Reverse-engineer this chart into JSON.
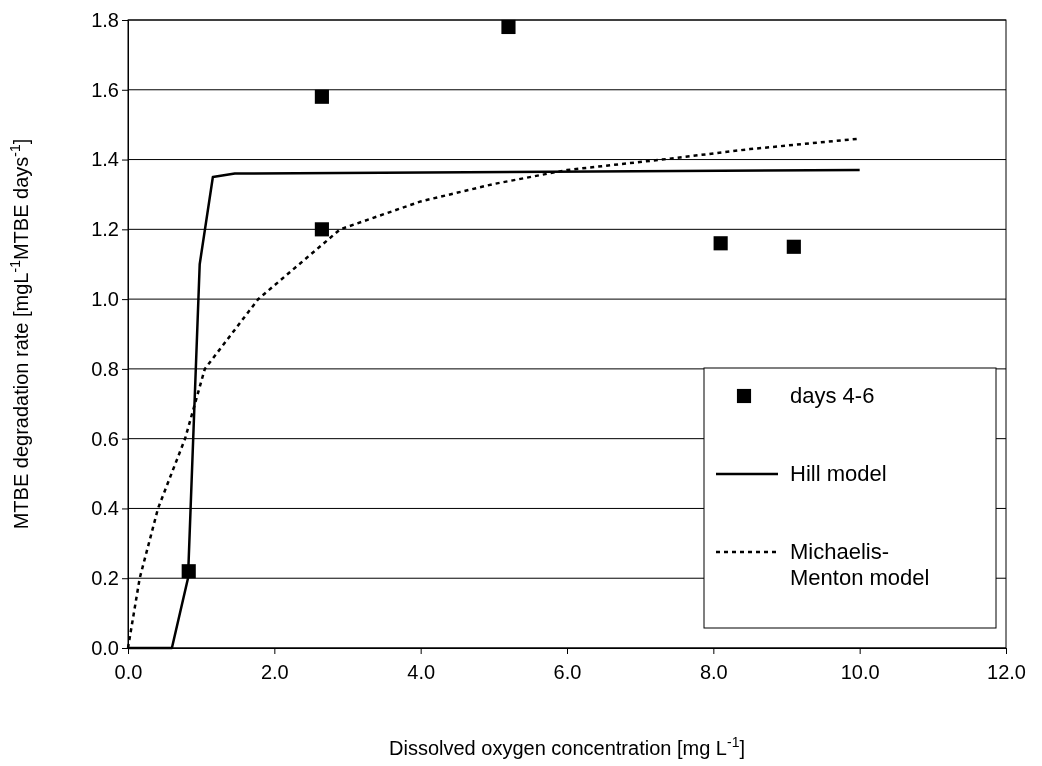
{
  "chart_data": {
    "type": "scatter",
    "xlabel": "Dissolved oxygen concentration [mg L$^{-1}$]",
    "ylabel": "MTBE degradation rate [mgL$^{-1}$MTBE days$^{-1}$]",
    "xlim": [
      0,
      12
    ],
    "ylim": [
      0,
      1.8
    ],
    "xticks": [
      {
        "value": 0,
        "label": "0.0"
      },
      {
        "value": 2,
        "label": "2.0"
      },
      {
        "value": 4,
        "label": "4.0"
      },
      {
        "value": 6,
        "label": "6.0"
      },
      {
        "value": 8,
        "label": "8.0"
      },
      {
        "value": 10,
        "label": "10.0"
      },
      {
        "value": 12,
        "label": "12.0"
      }
    ],
    "yticks": [
      {
        "value": 0,
        "label": "0.0"
      },
      {
        "value": 0.2,
        "label": "0.2"
      },
      {
        "value": 0.4,
        "label": "0.4"
      },
      {
        "value": 0.6,
        "label": "0.6"
      },
      {
        "value": 0.8,
        "label": "0.8"
      },
      {
        "value": 1,
        "label": "1.0"
      },
      {
        "value": 1.2,
        "label": "1.2"
      },
      {
        "value": 1.4,
        "label": "1.4"
      },
      {
        "value": 1.6,
        "label": "1.6"
      },
      {
        "value": 1.8,
        "label": "1.8"
      }
    ],
    "grid": "y",
    "legend": "bottom right",
    "series": [
      {
        "name": "days 4-6",
        "marker": "square",
        "color": "#000000",
        "x": [
          0.83,
          2.65,
          2.65,
          5.2,
          8.1,
          9.1
        ],
        "values": [
          0.22,
          1.58,
          1.2,
          1.78,
          1.16,
          1.15
        ]
      },
      {
        "name": "Hill model",
        "type": "line",
        "line_style": "solid",
        "marker": "none",
        "color": "#000000",
        "x": [
          0,
          0.6,
          0.82,
          0.98,
          1.16,
          1.46,
          10
        ],
        "values": [
          0,
          0,
          0.2,
          1.1,
          1.35,
          1.36,
          1.37
        ]
      },
      {
        "name": "Michaelis-Menton model",
        "type": "line",
        "line_style": "dotted",
        "marker": "none",
        "color": "#000000",
        "x": [
          0,
          0.16,
          0.41,
          0.78,
          1.05,
          1.78,
          2.9,
          4,
          5,
          6,
          7.3,
          8.5,
          10
        ],
        "values": [
          0,
          0.2,
          0.4,
          0.6,
          0.8,
          1.0,
          1.2,
          1.28,
          1.33,
          1.37,
          1.4,
          1.43,
          1.46
        ]
      }
    ]
  }
}
